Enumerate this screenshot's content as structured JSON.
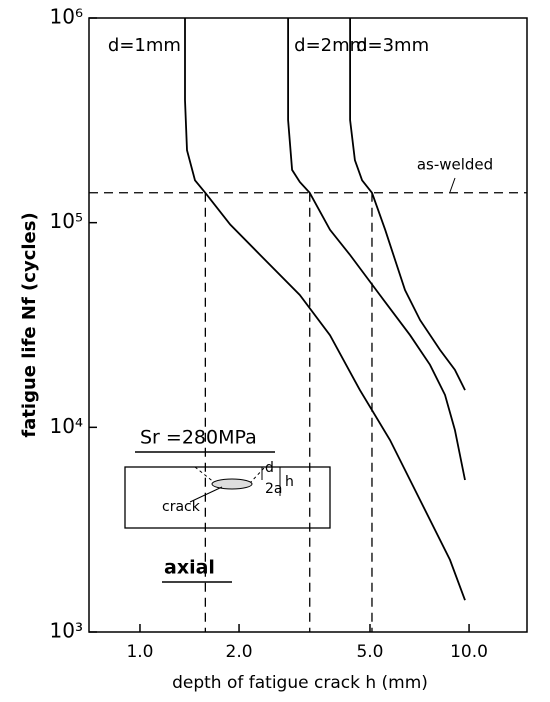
{
  "chart_data": {
    "type": "line",
    "xlabel": "depth of fatigue crack h (mm)",
    "ylabel": "fatigue life Nf (cycles)",
    "xscale": "log",
    "yscale": "log",
    "xlim": [
      0.7,
      15
    ],
    "ylim": [
      1000,
      1000000
    ],
    "xticks": [
      {
        "value": 1,
        "label": "1.0"
      },
      {
        "value": 2,
        "label": "2.0"
      },
      {
        "value": 5,
        "label": "5.0"
      },
      {
        "value": 10,
        "label": "10.0"
      }
    ],
    "yticks": [
      {
        "value": 1000,
        "label": "10³"
      },
      {
        "value": 10000,
        "label": "10⁴"
      },
      {
        "value": 100000,
        "label": "10⁵"
      },
      {
        "value": 1000000,
        "label": "10⁶"
      }
    ],
    "series": [
      {
        "name": "d=1mm",
        "color": "#000000",
        "x": [
          1.37,
          1.37,
          1.39,
          1.47,
          1.58,
          1.88,
          2.32,
          3.06,
          3.78,
          4.66,
          5.75,
          7.1,
          8.75,
          9.72
        ],
        "values": [
          1000000,
          397000,
          226000,
          161000,
          140000,
          98000,
          69500,
          44300,
          28200,
          15200,
          8670,
          4410,
          2250,
          1430
        ]
      },
      {
        "name": "d=2mm",
        "color": "#000000",
        "x": [
          2.82,
          2.82,
          2.9,
          3.06,
          3.28,
          3.78,
          4.35,
          5.36,
          6.62,
          7.61,
          8.45,
          9.06,
          9.72
        ],
        "values": [
          1000000,
          317000,
          181000,
          158000,
          140000,
          92300,
          69500,
          44300,
          28200,
          20200,
          14400,
          9700,
          5530
        ]
      },
      {
        "name": "d=3mm",
        "color": "#000000",
        "x": [
          4.35,
          4.35,
          4.5,
          4.73,
          5.07,
          5.56,
          5.96,
          6.39,
          7.1,
          8.16,
          9.06,
          9.72
        ],
        "values": [
          1000000,
          317000,
          202000,
          161000,
          140000,
          92300,
          65700,
          46900,
          33400,
          23900,
          19100,
          15200
        ]
      }
    ],
    "reference_lines": {
      "y": 140000,
      "x": [
        1.58,
        3.28,
        5.07
      ]
    },
    "annotations": {
      "as_welded": "as-welded",
      "stress": "Sr =280MPa",
      "loading": "axial",
      "crack": "crack",
      "d": "d",
      "two_a": "2a",
      "h": "h"
    }
  }
}
